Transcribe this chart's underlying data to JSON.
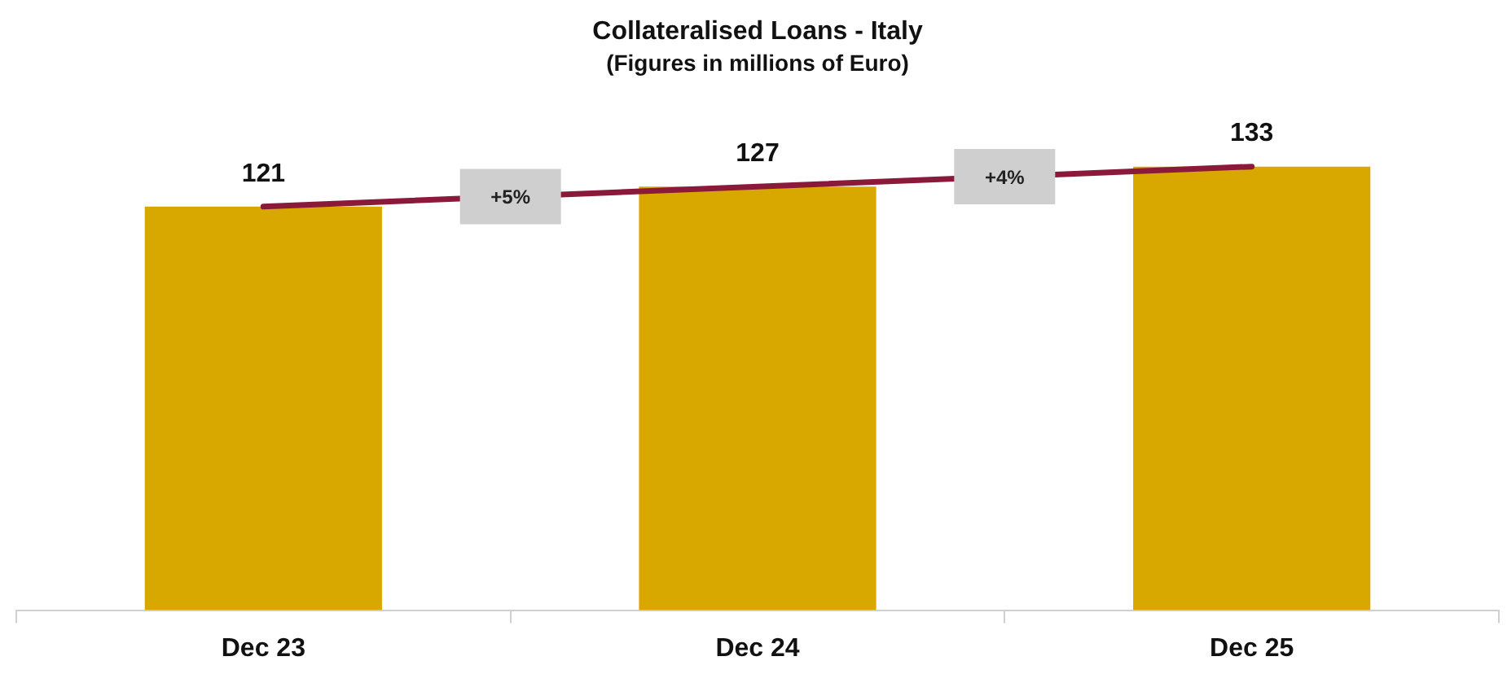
{
  "chart_data": {
    "type": "bar",
    "title": "Collateralised Loans - Italy",
    "subtitle": "(Figures in millions of Euro)",
    "categories": [
      "Dec 23",
      "Dec 24",
      "Dec 25"
    ],
    "series": [
      {
        "color": "#d9a800",
        "values": [
          121,
          127,
          133
        ],
        "value_labels": [
          "121",
          "127",
          "133"
        ]
      },
      {
        "type": "line",
        "color": "#8b1a3a",
        "values": [
          121,
          127,
          133
        ]
      }
    ],
    "annotations": [
      "+5%",
      "+4%"
    ],
    "grid": false,
    "legend": false,
    "marker": "none",
    "line_style": "solid"
  }
}
